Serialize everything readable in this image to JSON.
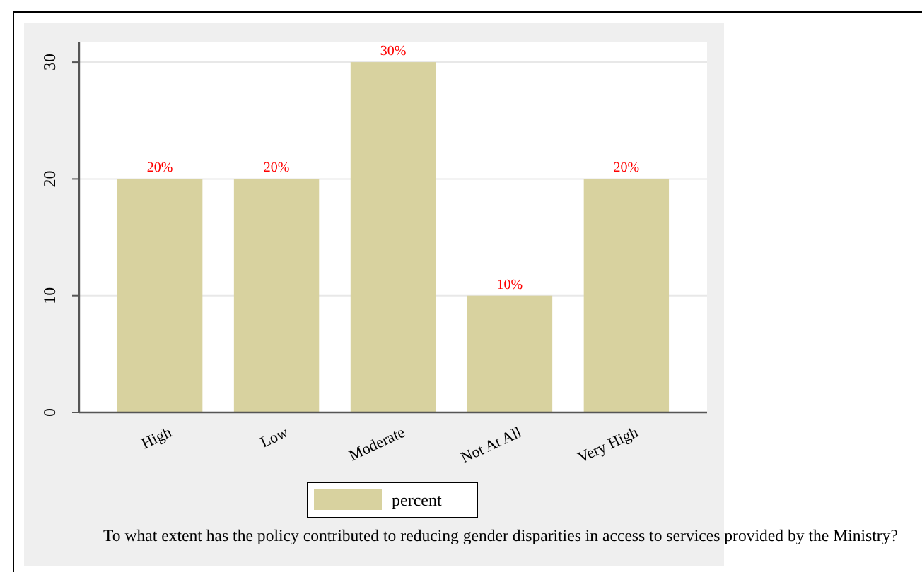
{
  "chart_data": {
    "type": "bar",
    "categories": [
      "High",
      "Low",
      "Moderate",
      "Not At All",
      "Very High"
    ],
    "series": [
      {
        "name": "percent",
        "color": "#d8d29f",
        "values": [
          20,
          20,
          30,
          10,
          20
        ],
        "value_labels": [
          "20%",
          "20%",
          "30%",
          "10%",
          "20%"
        ]
      }
    ],
    "ylim": [
      0,
      31.7
    ],
    "yticks": [
      0,
      10,
      20,
      30
    ],
    "grid": "y",
    "legend": "bottom",
    "annotations": [
      "To what extent has the policy contributed to reducing gender disparities in access to services provided by the Ministry?"
    ]
  }
}
